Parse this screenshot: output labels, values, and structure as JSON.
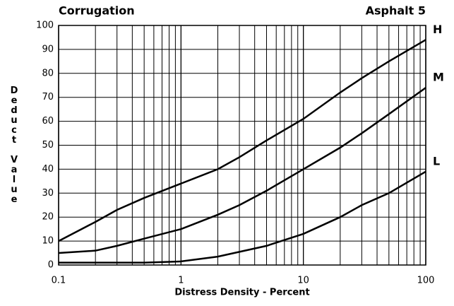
{
  "chart_data": {
    "type": "line",
    "title": "Corrugation",
    "subtitle": "Asphalt 5",
    "x_label": "Distress Density - Percent",
    "y_label": "Deduct Value",
    "x": [
      0.1,
      0.2,
      0.3,
      0.5,
      1,
      2,
      3,
      5,
      10,
      20,
      30,
      50,
      100
    ],
    "series": [
      {
        "name": "H",
        "color": "#000000",
        "values": [
          10,
          18,
          23,
          28,
          34,
          40,
          45,
          52,
          61,
          72,
          78,
          85,
          94
        ]
      },
      {
        "name": "M",
        "color": "#000000",
        "values": [
          5,
          6,
          8,
          11,
          15,
          21,
          25,
          31,
          40,
          49,
          55,
          63,
          74
        ]
      },
      {
        "name": "L",
        "color": "#000000",
        "values": [
          1,
          1,
          1,
          1,
          1.5,
          3.5,
          5.5,
          8,
          13,
          20,
          25,
          30,
          39
        ]
      }
    ],
    "xlim": [
      0.1,
      100
    ],
    "xticks": [
      0.1,
      1,
      10,
      100
    ],
    "log_x": true,
    "minor_grid": true,
    "ylim": [
      0,
      100
    ],
    "yticks": [
      0,
      10,
      20,
      30,
      40,
      50,
      60,
      70,
      80,
      90,
      100
    ],
    "grid": true
  }
}
